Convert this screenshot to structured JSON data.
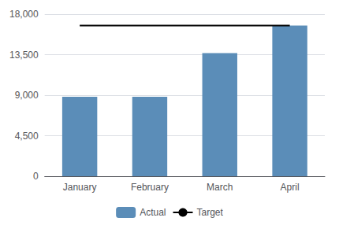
{
  "chart_data": {
    "type": "bar",
    "categories": [
      "January",
      "February",
      "March",
      "April"
    ],
    "series": [
      {
        "name": "Actual",
        "type": "bar",
        "color": "#5B8DB8",
        "values": [
          8820,
          8820,
          13680,
          16740
        ]
      },
      {
        "name": "Target",
        "type": "line",
        "color": "#000000",
        "marker": "none",
        "values": [
          16740,
          16740,
          16740,
          16740
        ]
      }
    ],
    "ylim": [
      0,
      18000
    ],
    "yticks": [
      0,
      {
        "value": 4500,
        "label": "4,500"
      },
      {
        "value": 9000,
        "label": "9,000"
      },
      {
        "value": 13500,
        "label": "13,500"
      },
      {
        "value": 18000,
        "label": "18,000"
      }
    ],
    "grid": true,
    "legend": "bottom"
  }
}
